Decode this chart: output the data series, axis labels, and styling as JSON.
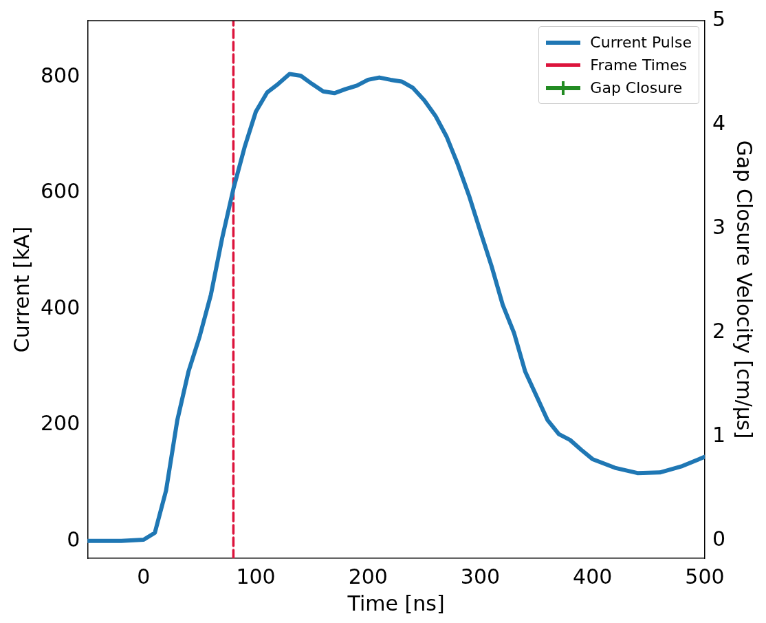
{
  "chart_data": {
    "type": "line",
    "xlabel": "Time [ns]",
    "ylabel": "Current [kA]",
    "y2label": "Gap Closure Velocity [cm/μs]",
    "xlim": [
      -50,
      500
    ],
    "xticks": [
      0,
      100,
      200,
      300,
      400,
      500
    ],
    "ylim": [
      -30,
      897
    ],
    "yticks": [
      0,
      200,
      400,
      600,
      800
    ],
    "y2lim": [
      -0.17,
      5
    ],
    "y2ticks": [
      0,
      1,
      2,
      3,
      4,
      5
    ],
    "grid": false,
    "legend": "top right",
    "series": [
      {
        "name": "Current Pulse",
        "color": "#1f77b4",
        "marker": "none",
        "line_style": "solid",
        "x": [
          -50,
          -20,
          0,
          10,
          20,
          30,
          40,
          50,
          60,
          70,
          80,
          90,
          100,
          110,
          120,
          130,
          140,
          150,
          160,
          170,
          180,
          190,
          200,
          210,
          220,
          230,
          240,
          250,
          260,
          270,
          280,
          290,
          300,
          310,
          320,
          330,
          340,
          350,
          360,
          370,
          380,
          390,
          400,
          420,
          440,
          460,
          480,
          500
        ],
        "values": [
          0,
          0,
          2,
          14,
          87,
          208,
          292,
          353,
          425,
          522,
          607,
          679,
          740,
          773,
          788,
          805,
          802,
          788,
          775,
          772,
          779,
          785,
          795,
          799,
          795,
          792,
          781,
          760,
          733,
          697,
          649,
          595,
          534,
          474,
          407,
          359,
          292,
          250,
          208,
          184,
          174,
          157,
          141,
          126,
          117,
          118,
          129,
          145
        ]
      },
      {
        "name": "Frame Times",
        "color": "#dc143c",
        "marker": "none",
        "line_style": "dashed",
        "x": [
          80,
          80
        ],
        "values": [
          -30,
          897
        ]
      },
      {
        "name": "Gap Closure",
        "color": "#228b22",
        "marker": "cross",
        "line_style": "solid"
      }
    ]
  }
}
